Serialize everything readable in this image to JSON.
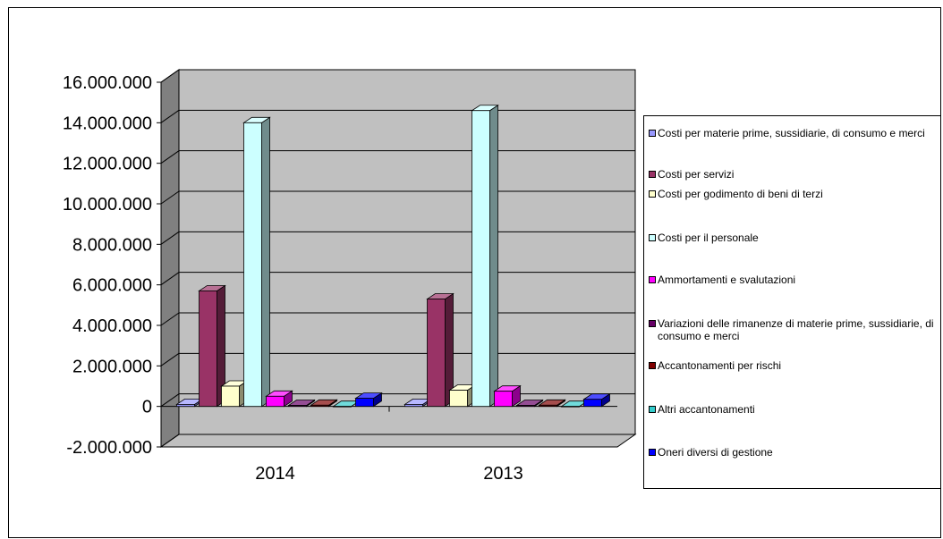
{
  "chart_data": {
    "type": "bar",
    "three_d": true,
    "title": "",
    "xlabel": "",
    "ylabel": "",
    "categories": [
      "2014",
      "2013"
    ],
    "ylim": [
      -2000000,
      16000000
    ],
    "yticks": [
      -2000000,
      0,
      2000000,
      4000000,
      6000000,
      8000000,
      10000000,
      12000000,
      14000000,
      16000000
    ],
    "ytick_labels": [
      "-2.000.000",
      "0",
      "2.000.000",
      "4.000.000",
      "6.000.000",
      "8.000.000",
      "10.000.000",
      "12.000.000",
      "14.000.000",
      "16.000.000"
    ],
    "grid": true,
    "legend_position": "right",
    "series": [
      {
        "name": "Costi per materie prime, sussidiarie, di consumo e merci",
        "color": "#9999FF",
        "values": [
          100000,
          100000
        ]
      },
      {
        "name": "Costi per servizi",
        "color": "#993366",
        "values": [
          5700000,
          5300000
        ]
      },
      {
        "name": "Costi per godimento di beni di terzi",
        "color": "#FFFFCC",
        "values": [
          1000000,
          800000
        ]
      },
      {
        "name": "Costi per il personale",
        "color": "#CCFFFF",
        "values": [
          14000000,
          14600000
        ]
      },
      {
        "name": "Ammortamenti e svalutazioni",
        "color": "#FF00FF",
        "values": [
          500000,
          750000
        ]
      },
      {
        "name": "Variazioni delle rimanenze di materie prime, sussidiarie, di consumo e merci",
        "color": "#660066",
        "values": [
          50000,
          50000
        ]
      },
      {
        "name": "Accantonamenti per rischi",
        "color": "#800000",
        "values": [
          60000,
          60000
        ]
      },
      {
        "name": "Altri accantonamenti",
        "color": "#33CCCC",
        "values": [
          0,
          0
        ]
      },
      {
        "name": "Oneri diversi di gestione",
        "color": "#0000FF",
        "values": [
          400000,
          350000
        ]
      }
    ]
  }
}
